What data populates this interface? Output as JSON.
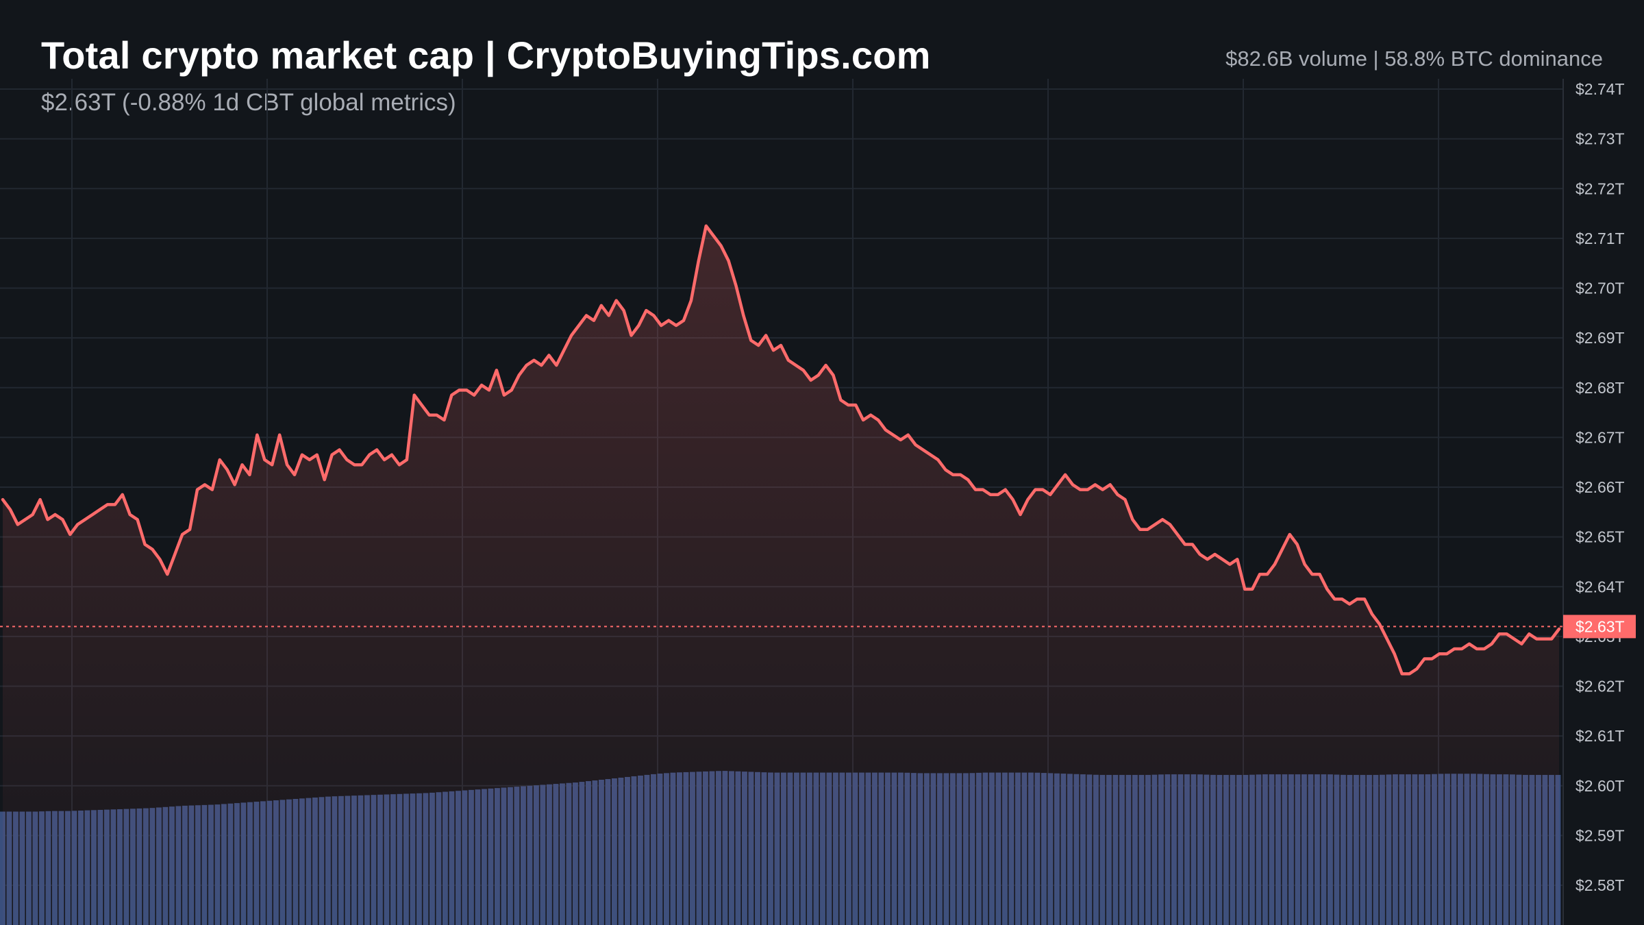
{
  "header": {
    "title": "Total crypto market cap | CryptoBuyingTips.com",
    "subtitle": "$2.63T (-0.88% 1d CBT global metrics)",
    "stats": "$82.6B volume | 58.8% BTC dominance"
  },
  "colors": {
    "background": "#12161b",
    "line": "#ff6b6b",
    "volume": "#3a4f7d",
    "grid": "#222831",
    "current_badge": "#ff6b6b"
  },
  "chart_data": {
    "type": "line",
    "title": "Total crypto market cap | CryptoBuyingTips.com",
    "xlabel": "",
    "ylabel": "",
    "y_unit": "trillion USD",
    "ylim": [
      2.575,
      2.745
    ],
    "grid": true,
    "y_ticks": [
      {
        "value": 2.74,
        "label": "$2.74T"
      },
      {
        "value": 2.73,
        "label": "$2.73T"
      },
      {
        "value": 2.72,
        "label": "$2.72T"
      },
      {
        "value": 2.71,
        "label": "$2.71T"
      },
      {
        "value": 2.7,
        "label": "$2.70T"
      },
      {
        "value": 2.69,
        "label": "$2.69T"
      },
      {
        "value": 2.68,
        "label": "$2.68T"
      },
      {
        "value": 2.67,
        "label": "$2.67T"
      },
      {
        "value": 2.66,
        "label": "$2.66T"
      },
      {
        "value": 2.65,
        "label": "$2.65T"
      },
      {
        "value": 2.64,
        "label": "$2.64T"
      },
      {
        "value": 2.63,
        "label": "$2.63T"
      },
      {
        "value": 2.62,
        "label": "$2.62T"
      },
      {
        "value": 2.61,
        "label": "$2.61T"
      },
      {
        "value": 2.6,
        "label": "$2.60T"
      },
      {
        "value": 2.59,
        "label": "$2.59T"
      },
      {
        "value": 2.58,
        "label": "$2.58T"
      }
    ],
    "current": {
      "value": 2.632,
      "label": "$2.63T"
    },
    "series": [
      {
        "values": [
          2.6575,
          2.6555,
          2.6525,
          2.6535,
          2.6545,
          2.6575,
          2.6535,
          2.6545,
          2.6535,
          2.6505,
          2.6525,
          2.6535,
          2.6545,
          2.6555,
          2.6565,
          2.6565,
          2.6585,
          2.6545,
          2.6535,
          2.6485,
          2.6475,
          2.6455,
          2.6425,
          2.6465,
          2.6505,
          2.6515,
          2.6595,
          2.6605,
          2.6595,
          2.6655,
          2.6635,
          2.6605,
          2.6645,
          2.6625,
          2.6705,
          2.6655,
          2.6645,
          2.6705,
          2.6645,
          2.6625,
          2.6665,
          2.6655,
          2.6665,
          2.6615,
          2.6665,
          2.6675,
          2.6655,
          2.6645,
          2.6645,
          2.6665,
          2.6675,
          2.6655,
          2.6665,
          2.6645,
          2.6655,
          2.6785,
          2.6765,
          2.6745,
          2.6745,
          2.6735,
          2.6785,
          2.6795,
          2.6795,
          2.6785,
          2.6805,
          2.6795,
          2.6835,
          2.6785,
          2.6795,
          2.6825,
          2.6845,
          2.6855,
          2.6845,
          2.6865,
          2.6845,
          2.6875,
          2.6905,
          2.6925,
          2.6945,
          2.6935,
          2.6965,
          2.6945,
          2.6975,
          2.6955,
          2.6905,
          2.6925,
          2.6955,
          2.6945,
          2.6925,
          2.6935,
          2.6925,
          2.6935,
          2.6975,
          2.7055,
          2.7125,
          2.7105,
          2.7085,
          2.7055,
          2.7005,
          2.6945,
          2.6895,
          2.6885,
          2.6905,
          2.6875,
          2.6885,
          2.6855,
          2.6845,
          2.6835,
          2.6815,
          2.6825,
          2.6845,
          2.6825,
          2.6775,
          2.6765,
          2.6765,
          2.6735,
          2.6745,
          2.6735,
          2.6715,
          2.6705,
          2.6695,
          2.6705,
          2.6685,
          2.6675,
          2.6665,
          2.6655,
          2.6635,
          2.6625,
          2.6625,
          2.6615,
          2.6595,
          2.6595,
          2.6585,
          2.6585,
          2.6595,
          2.6575,
          2.6545,
          2.6575,
          2.6595,
          2.6595,
          2.6585,
          2.6605,
          2.6625,
          2.6605,
          2.6595,
          2.6595,
          2.6605,
          2.6595,
          2.6605,
          2.6585,
          2.6575,
          2.6535,
          2.6515,
          2.6515,
          2.6525,
          2.6535,
          2.6525,
          2.6505,
          2.6485,
          2.6485,
          2.6465,
          2.6455,
          2.6465,
          2.6455,
          2.6445,
          2.6455,
          2.6395,
          2.6395,
          2.6425,
          2.6425,
          2.6445,
          2.6475,
          2.6505,
          2.6485,
          2.6445,
          2.6425,
          2.6425,
          2.6395,
          2.6375,
          2.6375,
          2.6365,
          2.6375,
          2.6375,
          2.6345,
          2.6325,
          2.6295,
          2.6265,
          2.6225,
          2.6225,
          2.6235,
          2.6255,
          2.6255,
          2.6265,
          2.6265,
          2.6275,
          2.6275,
          2.6285,
          2.6275,
          2.6275,
          2.6285,
          2.6305,
          2.6305,
          2.6295,
          2.6285,
          2.6305,
          2.6295,
          2.6295,
          2.6295,
          2.6315
        ]
      }
    ],
    "volume_series": {
      "values": [
        0.3,
        0.3,
        0.3,
        0.31,
        0.31,
        0.32,
        0.33,
        0.34,
        0.35,
        0.36,
        0.38,
        0.4,
        0.41,
        0.42,
        0.44,
        0.46,
        0.48,
        0.5,
        0.52,
        0.54,
        0.56,
        0.57,
        0.58,
        0.59,
        0.6,
        0.61,
        0.62,
        0.64,
        0.66,
        0.68,
        0.7,
        0.72,
        0.74,
        0.76,
        0.78,
        0.8,
        0.83,
        0.86,
        0.89,
        0.92,
        0.95,
        0.97,
        0.98,
        0.99,
        1.0,
        0.99,
        0.98,
        0.97,
        0.97,
        0.97,
        0.97,
        0.97,
        0.97,
        0.97,
        0.97,
        0.97,
        0.96,
        0.96,
        0.96,
        0.96,
        0.97,
        0.97,
        0.97,
        0.97,
        0.96,
        0.95,
        0.94,
        0.93,
        0.93,
        0.93,
        0.93,
        0.94,
        0.94,
        0.94,
        0.93,
        0.93,
        0.93,
        0.94,
        0.94,
        0.94,
        0.94,
        0.94,
        0.93,
        0.93,
        0.93,
        0.94,
        0.94,
        0.94,
        0.95,
        0.95,
        0.95,
        0.94,
        0.94,
        0.93,
        0.93,
        0.93
      ]
    }
  }
}
